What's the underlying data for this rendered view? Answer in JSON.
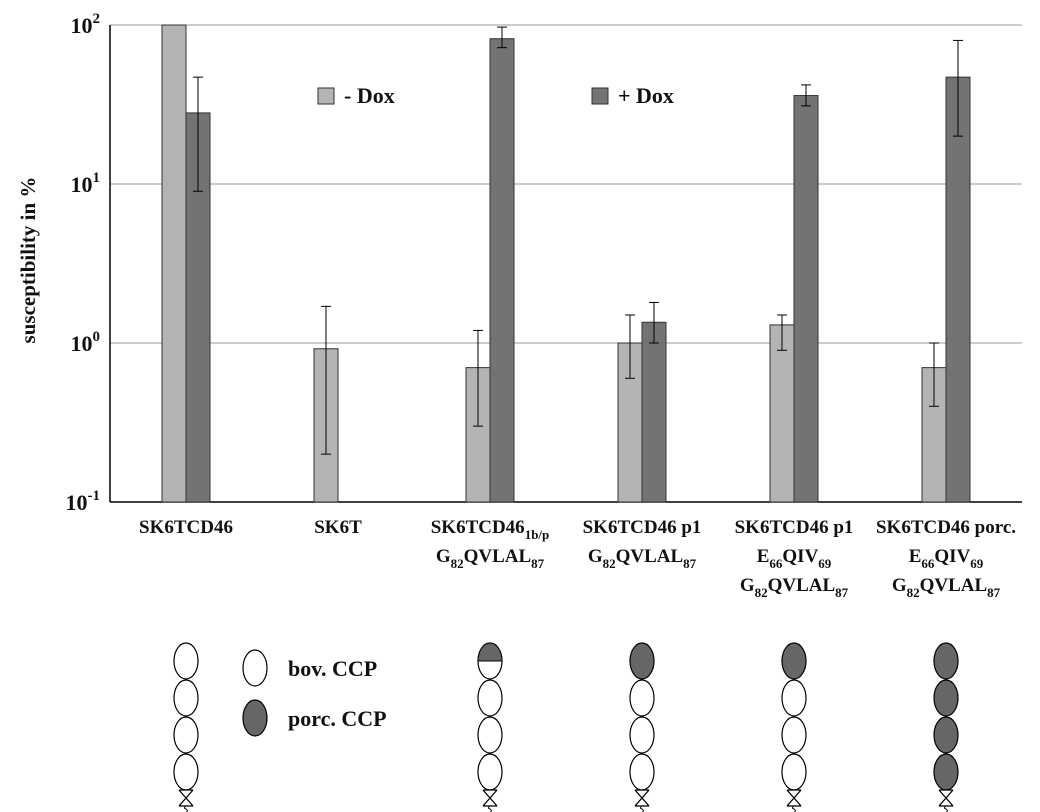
{
  "chart_data": {
    "type": "bar",
    "y_label": "susceptibility in %",
    "categories": [
      [
        [
          "SK6TCD46"
        ]
      ],
      [
        [
          "SK6T"
        ]
      ],
      [
        [
          "SK6TCD46",
          "1b/p"
        ],
        [
          "G",
          "82",
          "QVLAL",
          "87"
        ]
      ],
      [
        [
          "SK6TCD46 p1"
        ],
        [
          "G",
          "82",
          "QVLAL",
          "87"
        ]
      ],
      [
        [
          "SK6TCD46 p1"
        ],
        [
          "E",
          "66",
          "QIV",
          "69"
        ],
        [
          "G",
          "82",
          "QVLAL",
          "87"
        ]
      ],
      [
        [
          "SK6TCD46 porc."
        ],
        [
          "E",
          "66",
          "QIV",
          "69"
        ],
        [
          "G",
          "82",
          "QVLAL",
          "87"
        ]
      ]
    ],
    "series": [
      {
        "name": "- Dox",
        "color": "#b4b4b4",
        "values": [
          100,
          0.92,
          0.7,
          1.0,
          1.3,
          0.7
        ],
        "errors": [
          null,
          [
            0.2,
            1.7
          ],
          [
            0.3,
            1.2
          ],
          [
            0.6,
            1.5
          ],
          [
            0.9,
            1.5
          ],
          [
            0.4,
            1.0
          ]
        ]
      },
      {
        "name": "+ Dox",
        "color": "#737373",
        "values": [
          28,
          null,
          82,
          1.35,
          36,
          47
        ],
        "errors": [
          [
            9,
            47
          ],
          null,
          [
            72,
            97
          ],
          [
            1.0,
            1.8
          ],
          [
            31,
            42
          ],
          [
            20,
            80
          ]
        ]
      }
    ],
    "log_scale": true,
    "ylim": [
      0.1,
      100
    ],
    "yticks": [
      {
        "value": 0.1,
        "label": [
          "10",
          "-1"
        ]
      },
      {
        "value": 1,
        "label": [
          "10",
          "0"
        ]
      },
      {
        "value": 10,
        "label": [
          "10",
          "1"
        ]
      },
      {
        "value": 100,
        "label": [
          "10",
          "2"
        ]
      }
    ],
    "grid": true
  },
  "diagram_legend": [
    "bov. CCP",
    "porc. CCP"
  ]
}
